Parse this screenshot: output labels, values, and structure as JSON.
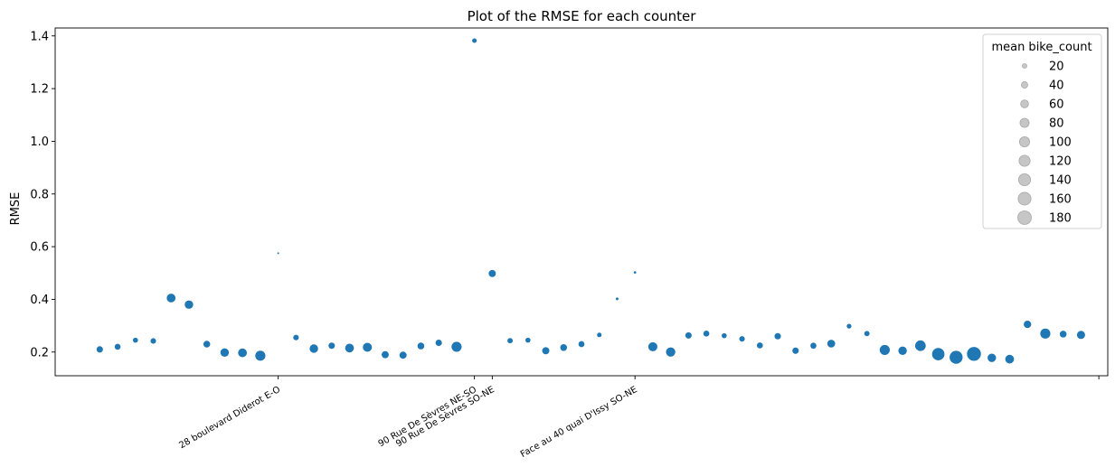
{
  "chart_data": {
    "type": "scatter",
    "title": "Plot of the RMSE for each counter",
    "xlabel": "",
    "ylabel": "RMSE",
    "xlim": [
      -2.5,
      56.5
    ],
    "ylim": [
      0.11,
      1.43
    ],
    "y_ticks": [
      0.2,
      0.4,
      0.6,
      0.8,
      1.0,
      1.2,
      1.4
    ],
    "y_tick_labels": [
      "0.2",
      "0.4",
      "0.6",
      "0.8",
      "1.0",
      "1.2",
      "1.4"
    ],
    "x_ticks": [
      {
        "x": 10,
        "label": "28 boulevard Diderot E-O"
      },
      {
        "x": 21,
        "label": "90 Rue De Sèvres NE-SO"
      },
      {
        "x": 22,
        "label": "90 Rue De Sèvres SO-NE"
      },
      {
        "x": 30,
        "label": "Face au 40 quai D'Issy SO-NE"
      },
      {
        "x": 56,
        "label": ""
      }
    ],
    "point_color": "#1f77b4",
    "size_variable": "mean bike_count",
    "points": [
      {
        "x": 0,
        "y": 0.21,
        "size": 40
      },
      {
        "x": 1,
        "y": 0.22,
        "size": 35
      },
      {
        "x": 2,
        "y": 0.245,
        "size": 25
      },
      {
        "x": 3,
        "y": 0.242,
        "size": 30
      },
      {
        "x": 4,
        "y": 0.405,
        "size": 75
      },
      {
        "x": 5,
        "y": 0.38,
        "size": 70
      },
      {
        "x": 6,
        "y": 0.23,
        "size": 45
      },
      {
        "x": 7,
        "y": 0.198,
        "size": 70
      },
      {
        "x": 8,
        "y": 0.197,
        "size": 75
      },
      {
        "x": 9,
        "y": 0.186,
        "size": 100
      },
      {
        "x": 10,
        "y": 0.575,
        "size": 3
      },
      {
        "x": 11,
        "y": 0.255,
        "size": 30
      },
      {
        "x": 12,
        "y": 0.213,
        "size": 70
      },
      {
        "x": 13,
        "y": 0.224,
        "size": 40
      },
      {
        "x": 14,
        "y": 0.215,
        "size": 75
      },
      {
        "x": 15,
        "y": 0.218,
        "size": 80
      },
      {
        "x": 16,
        "y": 0.19,
        "size": 50
      },
      {
        "x": 17,
        "y": 0.188,
        "size": 50
      },
      {
        "x": 18,
        "y": 0.223,
        "size": 45
      },
      {
        "x": 19,
        "y": 0.235,
        "size": 40
      },
      {
        "x": 20,
        "y": 0.22,
        "size": 100
      },
      {
        "x": 21,
        "y": 1.382,
        "size": 20
      },
      {
        "x": 22,
        "y": 0.498,
        "size": 50
      },
      {
        "x": 23,
        "y": 0.243,
        "size": 28
      },
      {
        "x": 24,
        "y": 0.245,
        "size": 25
      },
      {
        "x": 25,
        "y": 0.205,
        "size": 50
      },
      {
        "x": 26,
        "y": 0.217,
        "size": 45
      },
      {
        "x": 27,
        "y": 0.23,
        "size": 35
      },
      {
        "x": 28,
        "y": 0.265,
        "size": 20
      },
      {
        "x": 29,
        "y": 0.402,
        "size": 7
      },
      {
        "x": 30,
        "y": 0.502,
        "size": 6
      },
      {
        "x": 31,
        "y": 0.22,
        "size": 80
      },
      {
        "x": 32,
        "y": 0.2,
        "size": 85
      },
      {
        "x": 33,
        "y": 0.263,
        "size": 40
      },
      {
        "x": 34,
        "y": 0.27,
        "size": 35
      },
      {
        "x": 35,
        "y": 0.262,
        "size": 25
      },
      {
        "x": 36,
        "y": 0.25,
        "size": 30
      },
      {
        "x": 37,
        "y": 0.225,
        "size": 35
      },
      {
        "x": 38,
        "y": 0.26,
        "size": 40
      },
      {
        "x": 39,
        "y": 0.205,
        "size": 40
      },
      {
        "x": 40,
        "y": 0.224,
        "size": 35
      },
      {
        "x": 41,
        "y": 0.232,
        "size": 60
      },
      {
        "x": 42,
        "y": 0.298,
        "size": 22
      },
      {
        "x": 43,
        "y": 0.27,
        "size": 28
      },
      {
        "x": 44,
        "y": 0.208,
        "size": 100
      },
      {
        "x": 45,
        "y": 0.205,
        "size": 70
      },
      {
        "x": 46,
        "y": 0.224,
        "size": 110
      },
      {
        "x": 47,
        "y": 0.192,
        "size": 150
      },
      {
        "x": 48,
        "y": 0.18,
        "size": 165
      },
      {
        "x": 49,
        "y": 0.193,
        "size": 190
      },
      {
        "x": 50,
        "y": 0.178,
        "size": 70
      },
      {
        "x": 51,
        "y": 0.173,
        "size": 75
      },
      {
        "x": 52,
        "y": 0.305,
        "size": 55
      },
      {
        "x": 53,
        "y": 0.27,
        "size": 100
      },
      {
        "x": 54,
        "y": 0.268,
        "size": 45
      },
      {
        "x": 55,
        "y": 0.265,
        "size": 65
      }
    ],
    "legend": {
      "title": "mean bike_count",
      "placement": "top-right",
      "marker_color": "#c0c0c0",
      "entries": [
        {
          "label": "20",
          "size": 20
        },
        {
          "label": "40",
          "size": 40
        },
        {
          "label": "60",
          "size": 60
        },
        {
          "label": "80",
          "size": 80
        },
        {
          "label": "100",
          "size": 100
        },
        {
          "label": "120",
          "size": 120
        },
        {
          "label": "140",
          "size": 140
        },
        {
          "label": "160",
          "size": 160
        },
        {
          "label": "180",
          "size": 180
        }
      ]
    }
  }
}
